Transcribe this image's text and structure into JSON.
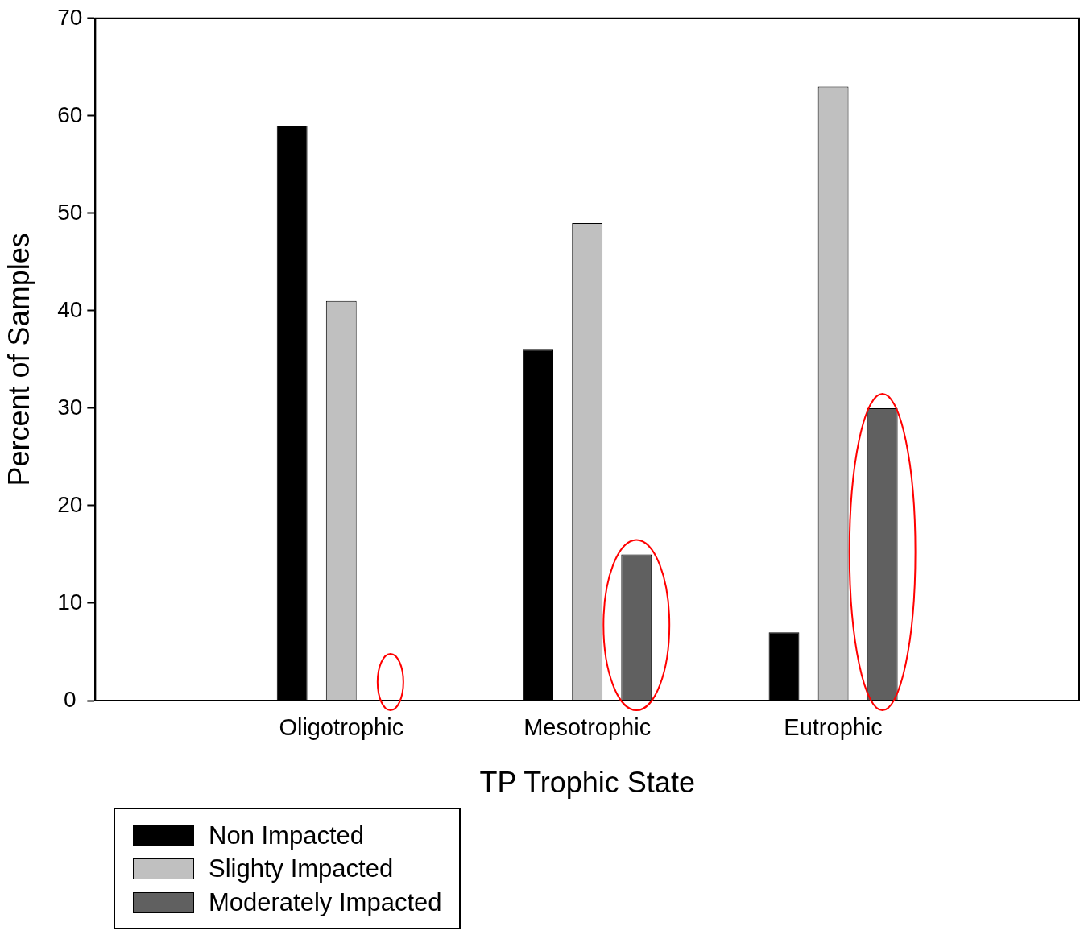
{
  "chart_data": {
    "type": "bar",
    "xlabel": "TP Trophic State",
    "ylabel": "Percent of Samples",
    "categories": [
      "Oligotrophic",
      "Mesotrophic",
      "Eutrophic"
    ],
    "series": [
      {
        "name": "Non Impacted",
        "color": "#000000",
        "values": [
          59,
          36,
          7
        ]
      },
      {
        "name": "Slighty Impacted",
        "color": "#c0c0c0",
        "values": [
          41,
          49,
          63
        ]
      },
      {
        "name": "Moderately Impacted",
        "color": "#606060",
        "values": [
          0,
          15,
          30
        ]
      }
    ],
    "ylim": [
      0,
      70
    ],
    "yticks": [
      0,
      10,
      20,
      30,
      40,
      50,
      60,
      70
    ],
    "grid": false,
    "legend": "bottom left"
  }
}
